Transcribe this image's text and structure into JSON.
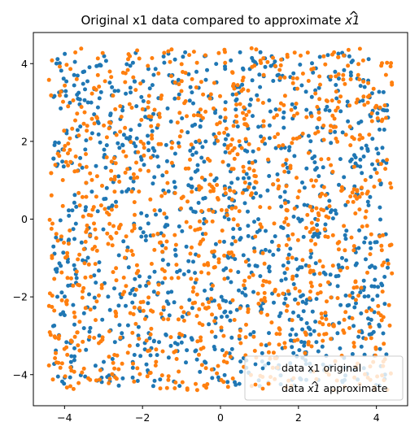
{
  "chart_data": {
    "type": "scatter",
    "title_main": "Original x1 data compared to approximate ",
    "title_math": "x1",
    "xlim": [
      -4.8,
      4.8
    ],
    "ylim": [
      -4.8,
      4.8
    ],
    "xticks": [
      -4,
      -2,
      0,
      2,
      4
    ],
    "yticks": [
      -4,
      -2,
      0,
      2,
      4
    ],
    "xtick_labels": [
      "−4",
      "−2",
      "0",
      "2",
      "4"
    ],
    "ytick_labels": [
      "−4",
      "−2",
      "0",
      "2",
      "4"
    ],
    "grid": false,
    "legend_position": "lower-right",
    "point_count_per_series": 1100,
    "series": [
      {
        "name": "data x1 original",
        "legend_text": "data x1 original",
        "color": "#1f77b4",
        "range": [
          -4.3,
          4.3
        ],
        "seed": 12345
      },
      {
        "name": "data x1 approximate",
        "legend_prefix": "data ",
        "legend_math": "x1",
        "legend_suffix": " approximate",
        "color": "#ff7f0e",
        "range": [
          -4.4,
          4.4
        ],
        "seed": 98765
      }
    ]
  }
}
